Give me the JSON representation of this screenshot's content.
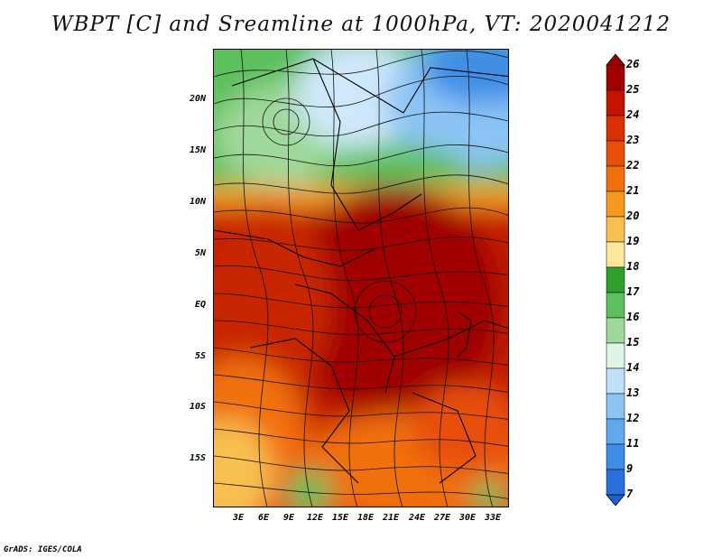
{
  "title": "WBPT [C] and Sreamline at 1000hPa, VT: 2020041212",
  "credit": "GrADS: IGES/COLA",
  "lat_labels": [
    "20N",
    "15N",
    "10N",
    "5N",
    "EQ",
    "5S",
    "10S",
    "15S"
  ],
  "lon_labels": [
    "3E",
    "6E",
    "9E",
    "12E",
    "15E",
    "18E",
    "21E",
    "24E",
    "27E",
    "30E",
    "33E"
  ],
  "colorbar": {
    "labels": [
      "26",
      "25",
      "24",
      "23",
      "22",
      "21",
      "20",
      "19",
      "18",
      "17",
      "16",
      "15",
      "14",
      "13",
      "12",
      "11",
      "9",
      "7"
    ],
    "colors": [
      "#a00000",
      "#c21400",
      "#d83000",
      "#e8500a",
      "#f07010",
      "#f49a1e",
      "#f7c050",
      "#fbe89a",
      "#2ea02e",
      "#5cc05c",
      "#9ed89a",
      "#dff5e6",
      "#bfe0fa",
      "#8cc4f4",
      "#62a8ee",
      "#3f8ee6",
      "#2a70da"
    ]
  },
  "map": {
    "field": "Wet-bulb potential temperature",
    "colors": {
      "hot": "#b81800",
      "warm": "#dc3a0a",
      "mid": "#ee7a1a",
      "mild": "#f5b040",
      "cool_green": "#5cc05c",
      "pale_green": "#a8dca0",
      "pale_blue": "#cfe8fb",
      "blue": "#4a90e6"
    }
  }
}
